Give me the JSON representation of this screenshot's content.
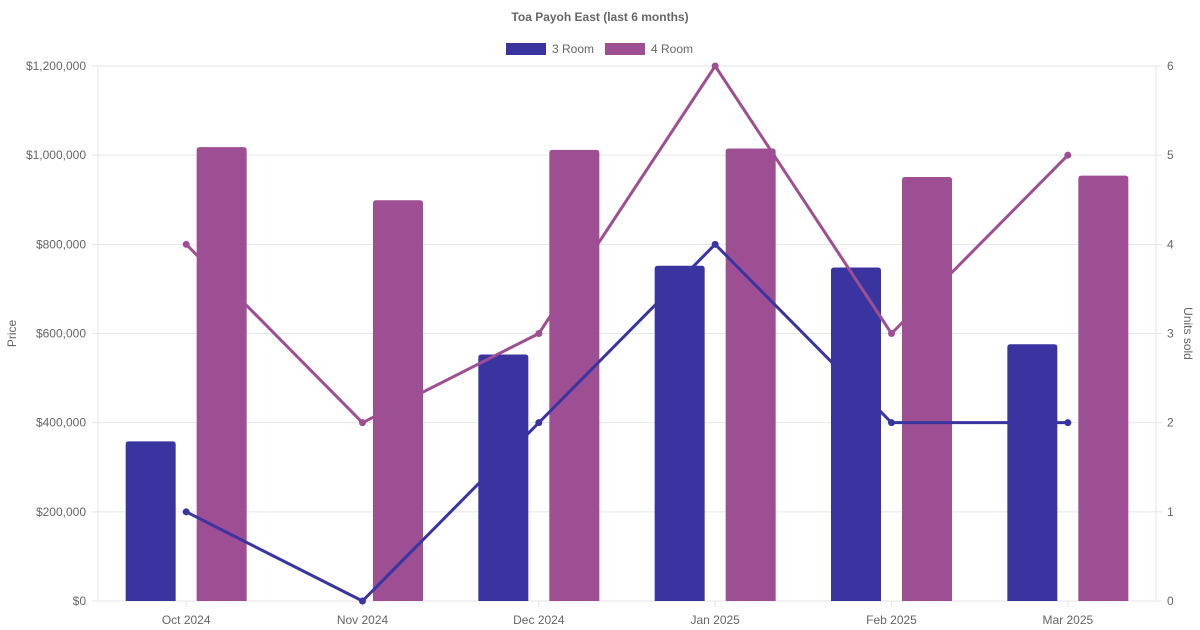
{
  "chart_data": {
    "type": "bar",
    "title": "Toa Payoh East (last 6 months)",
    "categories": [
      "Oct 2024",
      "Nov 2024",
      "Dec 2024",
      "Jan 2025",
      "Feb 2025",
      "Mar 2025"
    ],
    "y_left": {
      "label": "Price",
      "ylim": [
        0,
        1200000
      ],
      "ticks": [
        "$0",
        "$200,000",
        "$400,000",
        "$600,000",
        "$800,000",
        "$1,000,000",
        "$1,200,000"
      ]
    },
    "y_right": {
      "label": "Units sold",
      "ylim": [
        0,
        6
      ],
      "ticks": [
        "0",
        "1",
        "2",
        "3",
        "4",
        "5",
        "6"
      ]
    },
    "series": [
      {
        "name": "3 Room",
        "color": "#3a34a0",
        "price_values": [
          358000,
          null,
          553000,
          752000,
          748000,
          576000
        ],
        "units_sold": [
          1,
          0,
          2,
          4,
          2,
          2
        ]
      },
      {
        "name": "4 Room",
        "color": "#9e4f94",
        "price_values": [
          1018000,
          899000,
          1012000,
          1015000,
          951000,
          954000
        ],
        "units_sold": [
          4,
          2,
          3,
          6,
          3,
          5
        ]
      }
    ],
    "grid": true,
    "legend_position": "top-center"
  }
}
